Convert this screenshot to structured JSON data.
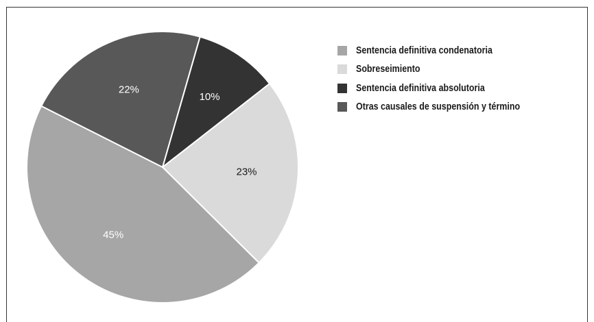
{
  "chart_data": {
    "type": "pie",
    "title": "",
    "slices": [
      {
        "name": "Sentencia definitiva condenatoria",
        "value": 45,
        "label": "45%",
        "color": "#a6a6a6",
        "label_color": "#ffffff"
      },
      {
        "name": "Sobreseimiento",
        "value": 23,
        "label": "23%",
        "color": "#d9dad9",
        "label_color": "#1a1a1a"
      },
      {
        "name": "Sentencia definitiva absolutoria",
        "value": 10,
        "label": "10%",
        "color": "#333333",
        "label_color": "#ffffff"
      },
      {
        "name": "Otras causales de suspensión y término",
        "value": 22,
        "label": "22%",
        "color": "#585858",
        "label_color": "#ffffff"
      }
    ],
    "legend_position": "right"
  }
}
